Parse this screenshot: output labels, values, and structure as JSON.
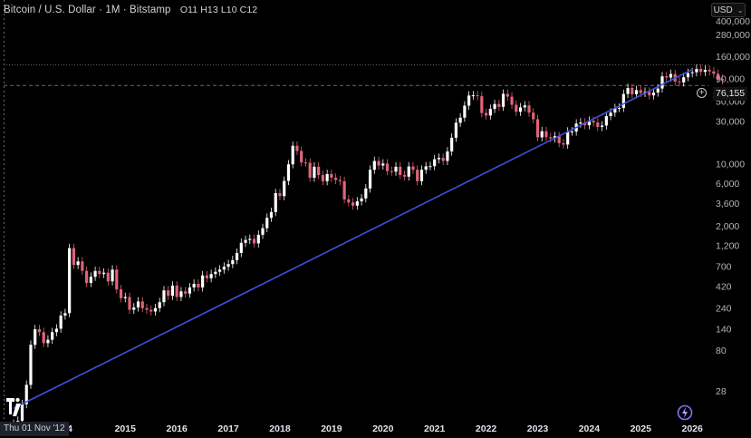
{
  "header": {
    "symbol_title": "Bitcoin / U.S. Dollar · 1M · Bitstamp",
    "ohlc": "O11 H13 L10 C12",
    "currency_button": "USD"
  },
  "crosshair": {
    "date_label": "Thu 01 Nov '12",
    "price_label": "76,155"
  },
  "colors": {
    "background": "#000000",
    "up_candle": "#ffffff",
    "down_candle": "#e0647a",
    "trendline": "#3f51d8",
    "axis_text": "#b2b5be",
    "dotted_line": "#6a6a6a"
  },
  "icons": [
    "chevron-down-icon",
    "plus-circle-icon",
    "tradingview-logo",
    "lightning-bolt-icon"
  ],
  "chart_data": {
    "type": "candlestick",
    "y_scale": "log",
    "yticks": [
      "400,000",
      "280,000",
      "160,000",
      "90,000",
      "50,000",
      "30,000",
      "10,000",
      "6,000",
      "3,600",
      "2,000",
      "1,200",
      "700",
      "420",
      "240",
      "140",
      "80",
      "28"
    ],
    "xticks": [
      "4",
      "2015",
      "2016",
      "2017",
      "2018",
      "2019",
      "2020",
      "2021",
      "2022",
      "2023",
      "2024",
      "2025",
      "2026"
    ],
    "x_range": [
      "2012-11",
      "2026-01"
    ],
    "y_range": [
      15,
      500000
    ],
    "horizontal_line_value": 130000,
    "trendline": {
      "start": [
        "2012-11",
        18
      ],
      "end": [
        "2025-12",
        110000
      ]
    },
    "monthly_close": [
      12,
      13,
      20,
      33,
      93,
      139,
      129,
      97,
      106,
      129,
      141,
      198,
      211,
      1133,
      732,
      804,
      630,
      460,
      540,
      628,
      580,
      600,
      480,
      650,
      390,
      310,
      320,
      230,
      244,
      285,
      240,
      230,
      220,
      240,
      280,
      380,
      330,
      430,
      320,
      370,
      350,
      410,
      450,
      410,
      560,
      520,
      580,
      615,
      650,
      700,
      750,
      830,
      1000,
      1300,
      1400,
      1440,
      1280,
      1600,
      1900,
      2480,
      2880,
      4700,
      4350,
      6450,
      9900,
      16000,
      14000,
      10400,
      10300,
      7000,
      9300,
      7500,
      6400,
      7700,
      7000,
      6600,
      6400,
      4000,
      3700,
      3400,
      3800,
      4100,
      5300,
      8600,
      10800,
      9600,
      10100,
      8300,
      8200,
      9300,
      7500,
      7200,
      9350,
      8600,
      6400,
      8600,
      9400,
      9450,
      11300,
      11700,
      10800,
      13800,
      19700,
      29000,
      33100,
      45200,
      58700,
      59000,
      57700,
      37300,
      35000,
      41500,
      47100,
      43800,
      61300,
      57000,
      46200,
      38500,
      43200,
      45500,
      37700,
      31800,
      19900,
      23300,
      20000,
      19400,
      20500,
      17100,
      16500,
      23100,
      23100,
      28400,
      29200,
      27200,
      30500,
      29200,
      26000,
      27000,
      34500,
      37700,
      42300,
      42600,
      61100,
      71300,
      60600,
      67500,
      62700,
      64600,
      58900,
      63300,
      70300,
      96400,
      93400,
      102400,
      84300,
      82500,
      94200,
      104600,
      107100,
      116900,
      108200,
      114100,
      109600,
      103000,
      90000,
      87000
    ]
  }
}
